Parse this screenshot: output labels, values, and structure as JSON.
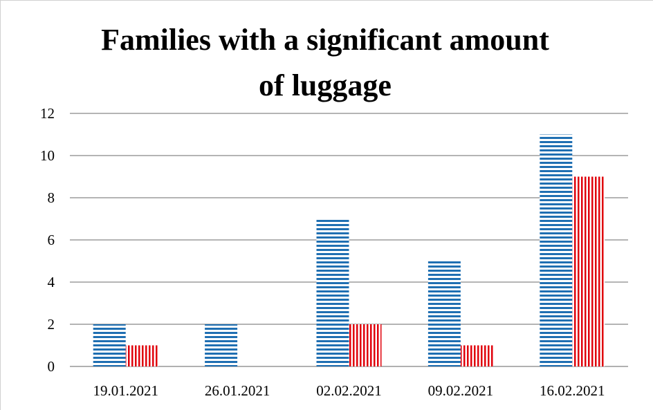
{
  "chart_data": {
    "type": "bar",
    "title_lines": [
      "Families with a significant amount",
      "of luggage"
    ],
    "categories": [
      "19.01.2021",
      "26.01.2021",
      "02.02.2021",
      "09.02.2021",
      "16.02.2021"
    ],
    "series": [
      {
        "values": [
          2,
          2,
          7,
          5,
          11
        ],
        "color": "#1f6fb2",
        "pattern": "horizontal-stripes"
      },
      {
        "values": [
          1,
          0,
          2,
          1,
          9
        ],
        "color": "#e0000b",
        "pattern": "vertical-stripes"
      }
    ],
    "ylim": [
      0,
      12
    ],
    "yticks": [
      "0",
      "2",
      "4",
      "6",
      "8",
      "10",
      "12"
    ],
    "grid": true,
    "legend": "none"
  }
}
